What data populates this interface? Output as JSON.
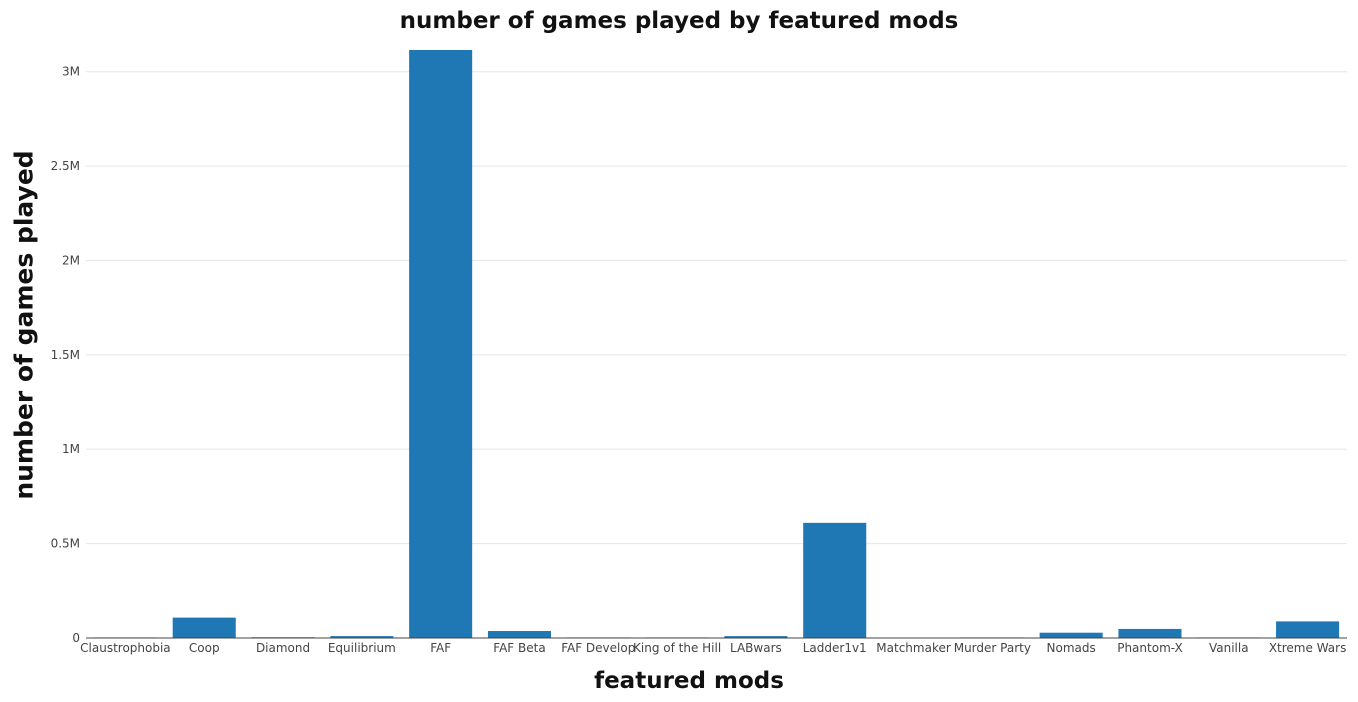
{
  "chart_data": {
    "type": "bar",
    "title": "number of games played by featured mods",
    "xlabel": "featured mods",
    "ylabel": "number of games played",
    "categories": [
      "Claustrophobia",
      "Coop",
      "Diamond",
      "Equilibrium",
      "FAF",
      "FAF Beta",
      "FAF Develop",
      "King of the Hill",
      "LABwars",
      "Ladder1v1",
      "Matchmaker",
      "Murder Party",
      "Nomads",
      "Phantom-X",
      "Vanilla",
      "Xtreme Wars"
    ],
    "values": [
      3000,
      108000,
      4000,
      10000,
      3115000,
      37000,
      3000,
      3000,
      10000,
      610000,
      200,
      3000,
      28000,
      48000,
      3000,
      88000
    ],
    "ylim": [
      0,
      3115000
    ],
    "yticks": [
      0,
      500000,
      1000000,
      1500000,
      2000000,
      2500000,
      3000000
    ],
    "ytick_labels": [
      "0",
      "0.5M",
      "1M",
      "1.5M",
      "2M",
      "2.5M",
      "3M"
    ],
    "bar_color": "#1f77b4",
    "grid": true,
    "legend": "none"
  }
}
